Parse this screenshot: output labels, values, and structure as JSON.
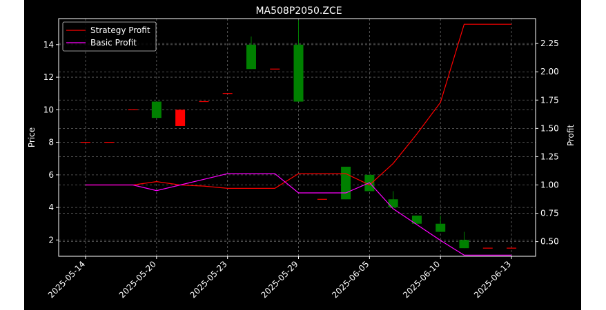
{
  "chart_data": {
    "type": "candlestick",
    "title": "MA508P2050.ZCE",
    "ylabel_left": "Price",
    "ylabel_right": "Profit",
    "xlabel": "",
    "ylim_left": [
      1.0,
      15.6
    ],
    "ylim_right": [
      0.37,
      2.47
    ],
    "yticks_left": [
      2,
      4,
      6,
      8,
      10,
      12,
      14
    ],
    "yticks_right": [
      0.5,
      0.75,
      1.0,
      1.25,
      1.5,
      1.75,
      2.0,
      2.25
    ],
    "xtick_labels": [
      "2025-05-14",
      "2025-05-20",
      "2025-05-23",
      "2025-05-29",
      "2025-06-05",
      "2025-06-10",
      "2025-06-13"
    ],
    "xtick_index": [
      0,
      3,
      6,
      9,
      12,
      15,
      18
    ],
    "grid": true,
    "legend_position": "top-left",
    "colors": {
      "up": "#ff0000",
      "down": "#008000",
      "strategy": "#ff0000",
      "basic": "#ff00ff",
      "grid": "#666666",
      "axes": "#ffffff"
    },
    "candles": [
      {
        "o": 8.0,
        "h": 8.0,
        "l": 8.0,
        "c": 8.0
      },
      {
        "o": 8.0,
        "h": 8.0,
        "l": 8.0,
        "c": 8.0
      },
      {
        "o": 10.0,
        "h": 10.0,
        "l": 10.0,
        "c": 10.0
      },
      {
        "o": 10.5,
        "h": 10.5,
        "l": 9.5,
        "c": 9.5
      },
      {
        "o": 9.0,
        "h": 10.0,
        "l": 9.0,
        "c": 10.0
      },
      {
        "o": 10.5,
        "h": 10.5,
        "l": 10.5,
        "c": 10.5
      },
      {
        "o": 11.0,
        "h": 11.0,
        "l": 11.0,
        "c": 11.0
      },
      {
        "o": 14.0,
        "h": 14.5,
        "l": 12.5,
        "c": 12.5
      },
      {
        "o": 12.5,
        "h": 12.5,
        "l": 12.5,
        "c": 12.5
      },
      {
        "o": 14.0,
        "h": 15.5,
        "l": 10.5,
        "c": 10.5
      },
      {
        "o": 4.5,
        "h": 4.5,
        "l": 4.5,
        "c": 4.5
      },
      {
        "o": 6.5,
        "h": 6.5,
        "l": 4.5,
        "c": 4.5
      },
      {
        "o": 6.0,
        "h": 6.0,
        "l": 5.0,
        "c": 5.0
      },
      {
        "o": 4.5,
        "h": 5.0,
        "l": 4.0,
        "c": 4.0
      },
      {
        "o": 3.5,
        "h": 3.5,
        "l": 3.0,
        "c": 3.0
      },
      {
        "o": 3.0,
        "h": 3.5,
        "l": 2.5,
        "c": 2.5
      },
      {
        "o": 2.0,
        "h": 2.5,
        "l": 1.5,
        "c": 1.5
      },
      {
        "o": 1.5,
        "h": 1.5,
        "l": 1.5,
        "c": 1.5
      },
      {
        "o": 1.5,
        "h": 1.5,
        "l": 1.5,
        "c": 1.5
      }
    ],
    "series": [
      {
        "name": "Strategy Profit",
        "color": "#ff0000",
        "values": [
          1.0,
          1.0,
          1.0,
          1.03,
          1.0,
          0.99,
          0.97,
          0.97,
          0.97,
          1.1,
          1.1,
          1.1,
          1.0,
          1.19,
          1.45,
          1.73,
          2.42,
          2.42,
          2.42
        ]
      },
      {
        "name": "Basic Profit",
        "color": "#ff00ff",
        "values": [
          1.0,
          1.0,
          1.0,
          0.95,
          1.0,
          1.05,
          1.1,
          1.1,
          1.1,
          0.93,
          0.93,
          0.93,
          1.02,
          0.79,
          0.65,
          0.51,
          0.38,
          0.38,
          0.38
        ]
      }
    ]
  }
}
